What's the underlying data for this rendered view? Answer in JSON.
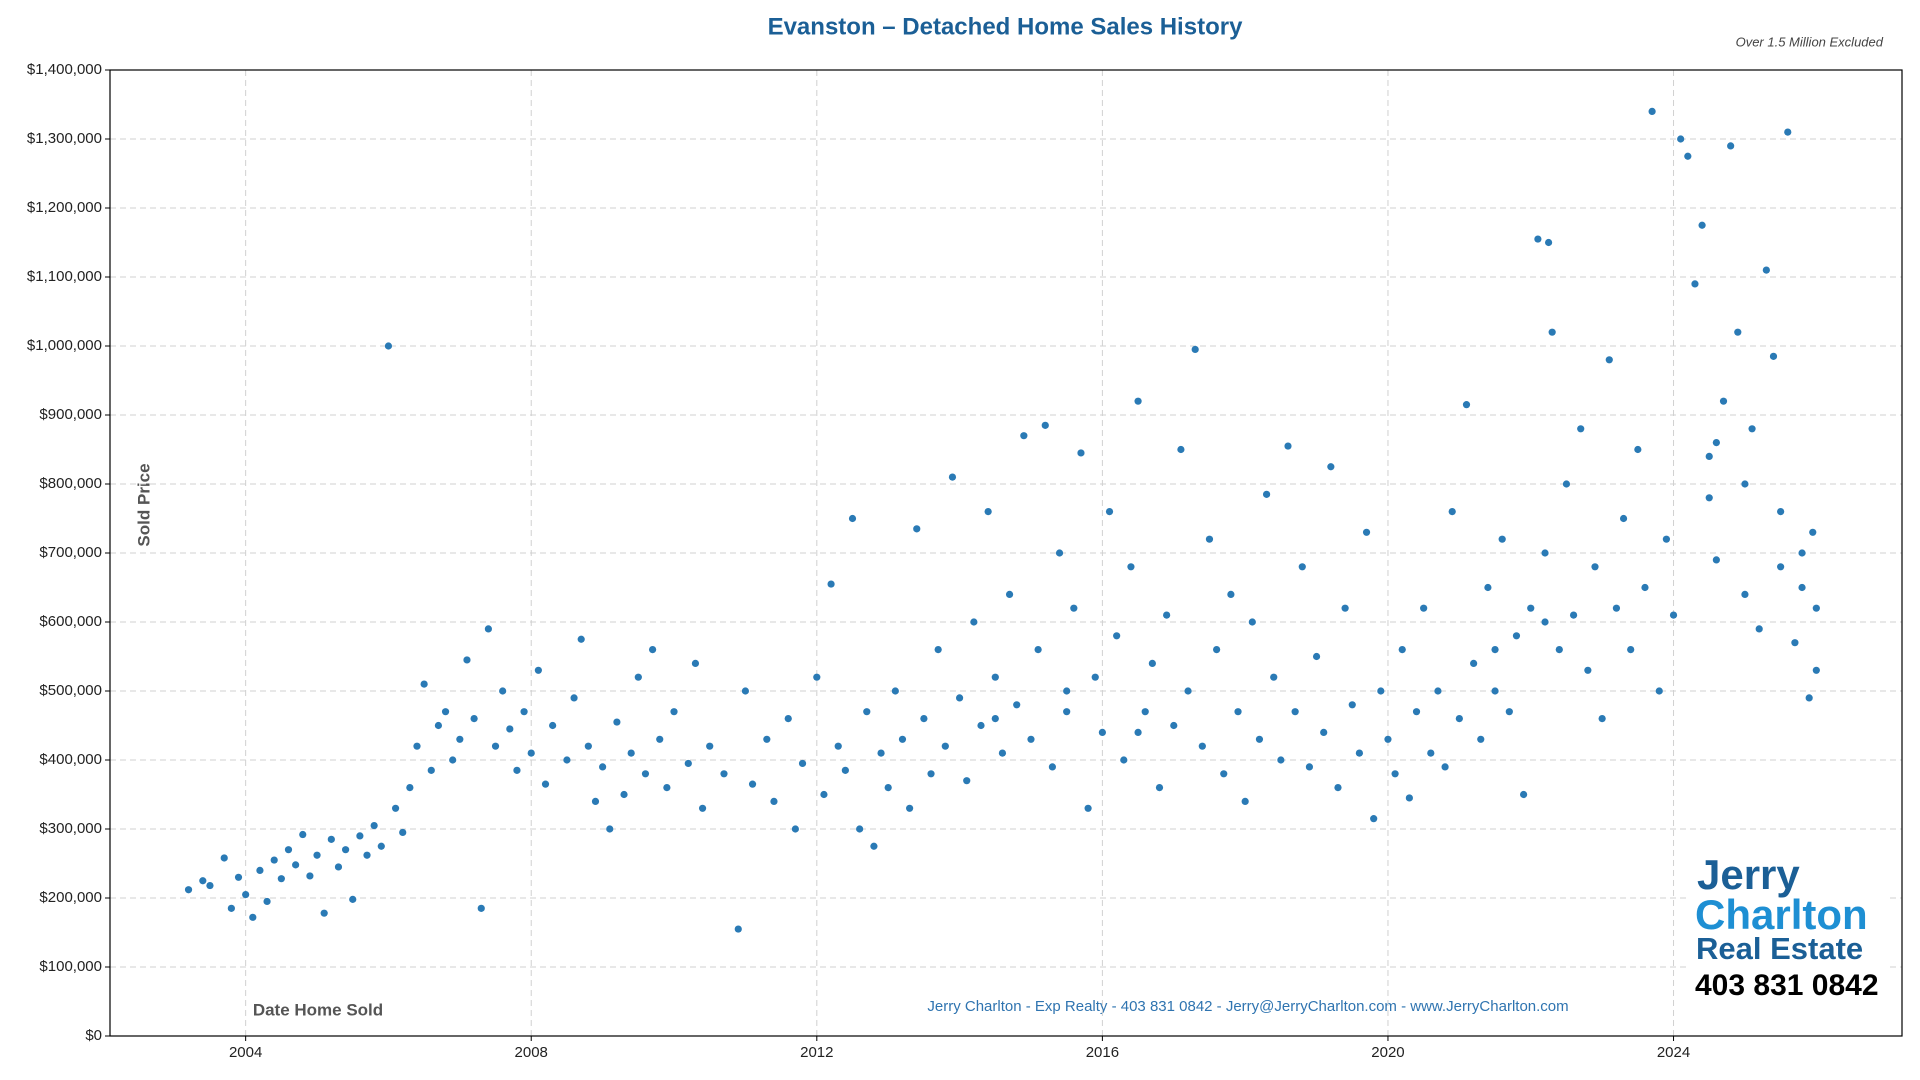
{
  "chart_data": {
    "type": "scatter",
    "title": "Evanston – Detached Home Sales History",
    "note": "Over 1.5 Million Excluded",
    "ylabel": "Sold Price",
    "xlabel": "Date Home Sold",
    "footer": "Jerry Charlton - Exp Realty - 403 831 0842 - Jerry@JerryCharlton.com - www.JerryCharlton.com",
    "logo": {
      "line1": "Jerry",
      "line2": "Charlton",
      "line3": "Real Estate",
      "phone": "403 831 0842"
    },
    "color": "#2a7ab5",
    "grid": true,
    "xlim": [
      2002.1,
      2027.2
    ],
    "xticks": [
      2004,
      2008,
      2012,
      2016,
      2020,
      2024
    ],
    "ylim": [
      0,
      1400000
    ],
    "yticks": [
      {
        "value": 0,
        "label": "$0"
      },
      {
        "value": 100000,
        "label": "$100,000"
      },
      {
        "value": 200000,
        "label": "$200,000"
      },
      {
        "value": 300000,
        "label": "$300,000"
      },
      {
        "value": 400000,
        "label": "$400,000"
      },
      {
        "value": 500000,
        "label": "$500,000"
      },
      {
        "value": 600000,
        "label": "$600,000"
      },
      {
        "value": 700000,
        "label": "$700,000"
      },
      {
        "value": 800000,
        "label": "$800,000"
      },
      {
        "value": 900000,
        "label": "$900,000"
      },
      {
        "value": 1000000,
        "label": "$1,000,000"
      },
      {
        "value": 1100000,
        "label": "$1,100,000"
      },
      {
        "value": 1200000,
        "label": "$1,200,000"
      },
      {
        "value": 1300000,
        "label": "$1,300,000"
      },
      {
        "value": 1400000,
        "label": "$1,400,000"
      }
    ],
    "x": [
      2003.2,
      2003.4,
      2003.5,
      2003.7,
      2003.8,
      2003.9,
      2004.0,
      2004.1,
      2004.2,
      2004.3,
      2004.4,
      2004.5,
      2004.6,
      2004.7,
      2004.8,
      2004.9,
      2005.0,
      2005.1,
      2005.2,
      2005.3,
      2005.4,
      2005.5,
      2005.6,
      2005.7,
      2005.8,
      2005.9,
      2006.0,
      2006.1,
      2006.2,
      2006.3,
      2006.4,
      2006.5,
      2006.6,
      2006.7,
      2006.8,
      2006.9,
      2007.0,
      2007.1,
      2007.2,
      2007.3,
      2007.4,
      2007.5,
      2007.6,
      2007.7,
      2007.8,
      2007.9,
      2008.0,
      2008.1,
      2008.2,
      2008.3,
      2008.5,
      2008.6,
      2008.7,
      2008.8,
      2008.9,
      2009.0,
      2009.1,
      2009.2,
      2009.3,
      2009.4,
      2009.5,
      2009.6,
      2009.7,
      2009.8,
      2009.9,
      2010.0,
      2010.2,
      2010.3,
      2010.4,
      2010.5,
      2010.7,
      2010.9,
      2011.0,
      2011.1,
      2011.3,
      2011.4,
      2011.6,
      2011.7,
      2011.8,
      2012.0,
      2012.1,
      2012.2,
      2012.3,
      2012.4,
      2012.5,
      2012.6,
      2012.7,
      2012.8,
      2012.9,
      2013.0,
      2013.1,
      2013.2,
      2013.3,
      2013.4,
      2013.5,
      2013.6,
      2013.7,
      2013.8,
      2013.9,
      2014.0,
      2014.1,
      2014.2,
      2014.3,
      2014.4,
      2014.5,
      2014.6,
      2014.7,
      2014.8,
      2014.9,
      2015.0,
      2015.1,
      2015.2,
      2015.3,
      2015.4,
      2015.5,
      2015.6,
      2015.7,
      2015.8,
      2015.9,
      2016.0,
      2016.1,
      2016.2,
      2016.3,
      2016.4,
      2016.5,
      2016.6,
      2016.7,
      2016.8,
      2016.9,
      2017.0,
      2017.1,
      2017.2,
      2017.3,
      2017.4,
      2017.5,
      2017.6,
      2017.7,
      2017.8,
      2017.9,
      2018.0,
      2018.1,
      2018.2,
      2018.3,
      2018.4,
      2018.5,
      2018.6,
      2018.7,
      2018.8,
      2018.9,
      2019.0,
      2019.1,
      2019.2,
      2019.3,
      2019.4,
      2019.5,
      2019.6,
      2019.7,
      2019.8,
      2019.9,
      2020.0,
      2020.1,
      2020.2,
      2020.3,
      2020.4,
      2020.5,
      2020.6,
      2020.7,
      2020.8,
      2020.9,
      2021.0,
      2021.1,
      2021.2,
      2021.3,
      2021.4,
      2021.5,
      2021.6,
      2021.7,
      2021.8,
      2021.9,
      2022.0,
      2022.1,
      2022.2,
      2022.25,
      2022.3,
      2022.4,
      2022.5,
      2022.6,
      2022.7,
      2022.8,
      2022.9,
      2023.0,
      2023.1,
      2023.2,
      2023.3,
      2023.4,
      2023.5,
      2023.6,
      2023.7,
      2023.8,
      2023.9,
      2024.0,
      2024.1,
      2024.2,
      2024.3,
      2024.4,
      2024.5,
      2024.6,
      2024.7,
      2024.8,
      2024.9,
      2025.0,
      2025.1,
      2025.2,
      2025.3,
      2025.4,
      2025.5,
      2025.6,
      2025.7,
      2025.8,
      2025.9,
      2026.0,
      2025.95,
      2026.0,
      2024.5,
      2024.6,
      2025.0,
      2025.5,
      2025.8,
      2022.2,
      2021.5,
      2015.5,
      2014.5,
      2016.5
    ],
    "values": [
      212000,
      225000,
      218000,
      258000,
      185000,
      230000,
      205000,
      172000,
      240000,
      195000,
      255000,
      228000,
      270000,
      248000,
      292000,
      232000,
      262000,
      178000,
      285000,
      245000,
      270000,
      198000,
      290000,
      262000,
      305000,
      275000,
      1000000,
      330000,
      295000,
      360000,
      420000,
      510000,
      385000,
      450000,
      470000,
      400000,
      430000,
      545000,
      460000,
      185000,
      590000,
      420000,
      500000,
      445000,
      385000,
      470000,
      410000,
      530000,
      365000,
      450000,
      400000,
      490000,
      575000,
      420000,
      340000,
      390000,
      300000,
      455000,
      350000,
      410000,
      520000,
      380000,
      560000,
      430000,
      360000,
      470000,
      395000,
      540000,
      330000,
      420000,
      380000,
      155000,
      500000,
      365000,
      430000,
      340000,
      460000,
      300000,
      395000,
      520000,
      350000,
      655000,
      420000,
      385000,
      750000,
      300000,
      470000,
      275000,
      410000,
      360000,
      500000,
      430000,
      330000,
      735000,
      460000,
      380000,
      560000,
      420000,
      810000,
      490000,
      370000,
      600000,
      450000,
      760000,
      520000,
      410000,
      640000,
      480000,
      870000,
      430000,
      560000,
      885000,
      390000,
      700000,
      470000,
      620000,
      845000,
      330000,
      520000,
      440000,
      760000,
      580000,
      400000,
      680000,
      920000,
      470000,
      540000,
      360000,
      610000,
      450000,
      850000,
      500000,
      995000,
      420000,
      720000,
      560000,
      380000,
      640000,
      470000,
      340000,
      600000,
      430000,
      785000,
      520000,
      400000,
      855000,
      470000,
      680000,
      390000,
      550000,
      440000,
      825000,
      360000,
      620000,
      480000,
      410000,
      730000,
      315000,
      500000,
      430000,
      380000,
      560000,
      345000,
      470000,
      620000,
      410000,
      500000,
      390000,
      760000,
      460000,
      915000,
      540000,
      430000,
      650000,
      500000,
      720000,
      470000,
      580000,
      350000,
      620000,
      1155000,
      700000,
      1150000,
      1020000,
      560000,
      800000,
      610000,
      880000,
      530000,
      680000,
      460000,
      980000,
      620000,
      750000,
      560000,
      850000,
      650000,
      1340000,
      500000,
      720000,
      610000,
      1300000,
      1275000,
      1090000,
      1175000,
      840000,
      690000,
      920000,
      1290000,
      1020000,
      640000,
      880000,
      590000,
      1110000,
      985000,
      760000,
      1310000,
      570000,
      700000,
      490000,
      620000,
      730000,
      530000,
      780000,
      860000,
      800000,
      680000,
      650000,
      600000,
      560000,
      500000,
      460000,
      440000
    ]
  }
}
